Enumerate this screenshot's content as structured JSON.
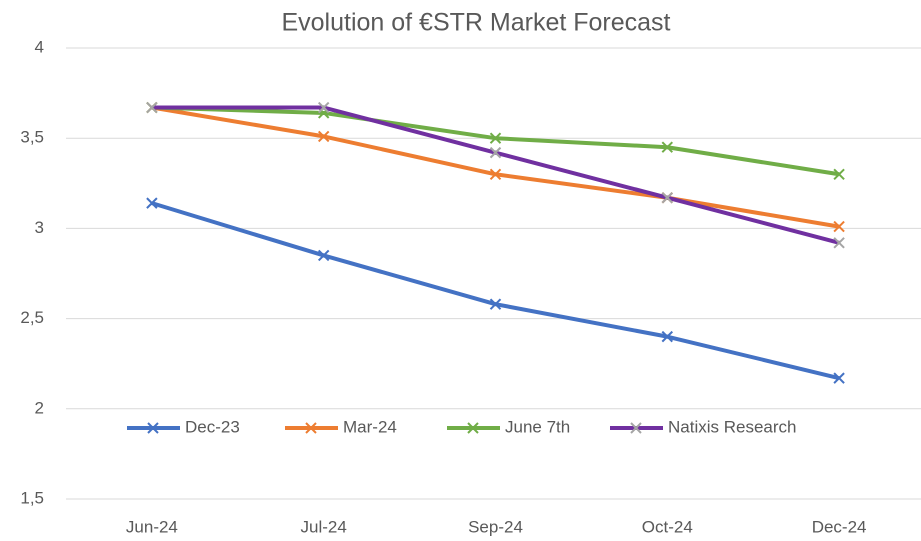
{
  "chart_data": {
    "type": "line",
    "title": "Evolution of €STR Market Forecast",
    "categories": [
      "Jun-24",
      "Jul-24",
      "Sep-24",
      "Oct-24",
      "Dec-24"
    ],
    "series": [
      {
        "name": "Dec-23",
        "color": "#4472c4",
        "values": [
          3.14,
          2.85,
          2.58,
          2.4,
          2.17
        ]
      },
      {
        "name": "Mar-24",
        "color": "#ed7d31",
        "values": [
          3.67,
          3.51,
          3.3,
          3.17,
          3.01
        ]
      },
      {
        "name": "June 7th",
        "color": "#70ad47",
        "values": [
          3.67,
          3.64,
          3.5,
          3.45,
          3.3
        ]
      },
      {
        "name": "Natixis Research",
        "color": "#7030a0",
        "marker_color": "#a5a5a5",
        "values": [
          3.67,
          3.67,
          3.42,
          3.17,
          2.92
        ]
      }
    ],
    "ylim": [
      1.5,
      4
    ],
    "yticks": [
      {
        "value": 1.5,
        "label": "1,5"
      },
      2,
      {
        "value": 2.5,
        "label": "2,5"
      },
      3,
      {
        "value": 3.5,
        "label": "3,5"
      },
      4
    ],
    "grid": true,
    "legend": "bottom"
  }
}
